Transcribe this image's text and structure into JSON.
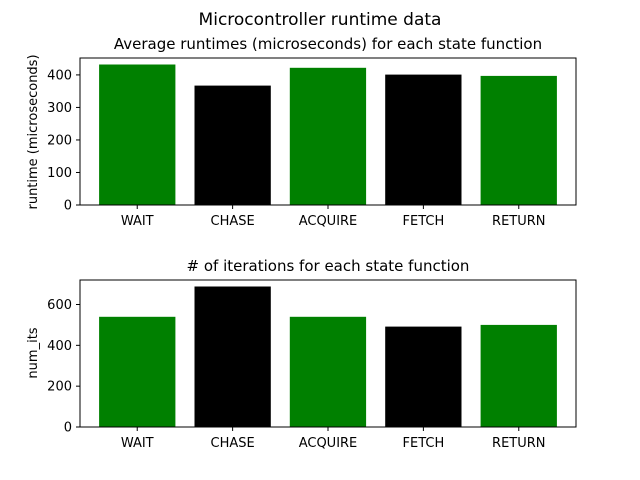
{
  "figure": {
    "title": "Microcontroller runtime data"
  },
  "chart_data": [
    {
      "type": "bar",
      "title": "Average runtimes (microseconds) for each state function",
      "xlabel": "",
      "ylabel": "runtime (microseconds)",
      "categories": [
        "WAIT",
        "CHASE",
        "ACQUIRE",
        "FETCH",
        "RETURN"
      ],
      "values": [
        432,
        367,
        422,
        401,
        397
      ],
      "colors": [
        "#008000",
        "#000000",
        "#008000",
        "#000000",
        "#008000"
      ],
      "ylim": [
        0,
        452
      ],
      "yticks": [
        0,
        100,
        200,
        300,
        400
      ],
      "grid": false,
      "legend": "none"
    },
    {
      "type": "bar",
      "title": "# of iterations for each state function",
      "xlabel": "",
      "ylabel": "num_its",
      "categories": [
        "WAIT",
        "CHASE",
        "ACQUIRE",
        "FETCH",
        "RETURN"
      ],
      "values": [
        540,
        688,
        540,
        492,
        500
      ],
      "colors": [
        "#008000",
        "#000000",
        "#008000",
        "#000000",
        "#008000"
      ],
      "ylim": [
        0,
        720
      ],
      "yticks": [
        0,
        200,
        400,
        600
      ],
      "grid": false,
      "legend": "none"
    }
  ]
}
